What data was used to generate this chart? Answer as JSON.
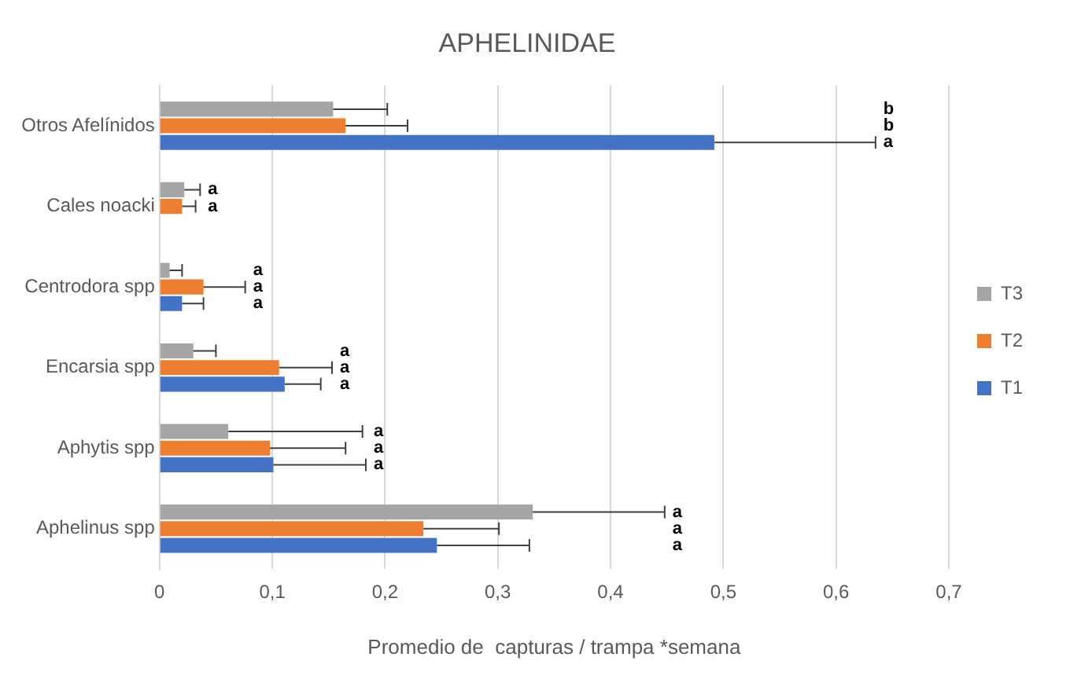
{
  "chart_data": {
    "type": "bar",
    "orientation": "horizontal",
    "title": "APHELINIDAE",
    "xlabel": "Promedio de  capturas / trampa *semana",
    "categories": [
      "Otros Afelínidos",
      "Cales noacki",
      "Centrodora spp",
      "Encarsia spp",
      "Aphytis spp",
      "Aphelinus spp"
    ],
    "series": [
      {
        "name": "T3",
        "color": "#a5a5a5",
        "values": [
          0.154,
          0.022,
          0.009,
          0.03,
          0.061,
          0.331
        ],
        "errors": [
          [
            0.154,
            0.202
          ],
          [
            0.022,
            0.036
          ],
          [
            0.009,
            0.02
          ],
          [
            0.03,
            0.05
          ],
          [
            0.061,
            0.18
          ],
          [
            0.331,
            0.448
          ]
        ]
      },
      {
        "name": "T2",
        "color": "#ed7d31",
        "values": [
          0.165,
          0.02,
          0.039,
          0.106,
          0.098,
          0.234
        ],
        "errors": [
          [
            0.165,
            0.22
          ],
          [
            0.02,
            0.032
          ],
          [
            0.039,
            0.076
          ],
          [
            0.106,
            0.153
          ],
          [
            0.098,
            0.165
          ],
          [
            0.234,
            0.301
          ]
        ]
      },
      {
        "name": "T1",
        "color": "#4472c4",
        "values": [
          0.492,
          null,
          0.02,
          0.111,
          0.101,
          0.246
        ],
        "errors": [
          [
            0.492,
            0.635
          ],
          null,
          [
            0.02,
            0.039
          ],
          [
            0.111,
            0.143
          ],
          [
            0.101,
            0.183
          ],
          [
            0.246,
            0.328
          ]
        ]
      }
    ],
    "annotations": [
      "b",
      "b",
      "a",
      "a",
      "a",
      "a",
      "a",
      "a",
      "a",
      "a",
      "a",
      "a",
      "a",
      "a",
      "a",
      "a",
      "a"
    ],
    "xlim": [
      0,
      0.7
    ],
    "xticks": [
      {
        "value": 0,
        "label": "0"
      },
      {
        "value": 0.1,
        "label": "0,1"
      },
      {
        "value": 0.2,
        "label": "0,2"
      },
      {
        "value": 0.3,
        "label": "0,3"
      },
      {
        "value": 0.4,
        "label": "0,4"
      },
      {
        "value": 0.5,
        "label": "0,5"
      },
      {
        "value": 0.6,
        "label": "0,6"
      },
      {
        "value": 0.7,
        "label": "0,7"
      }
    ],
    "grid": "x",
    "legend": "right"
  }
}
